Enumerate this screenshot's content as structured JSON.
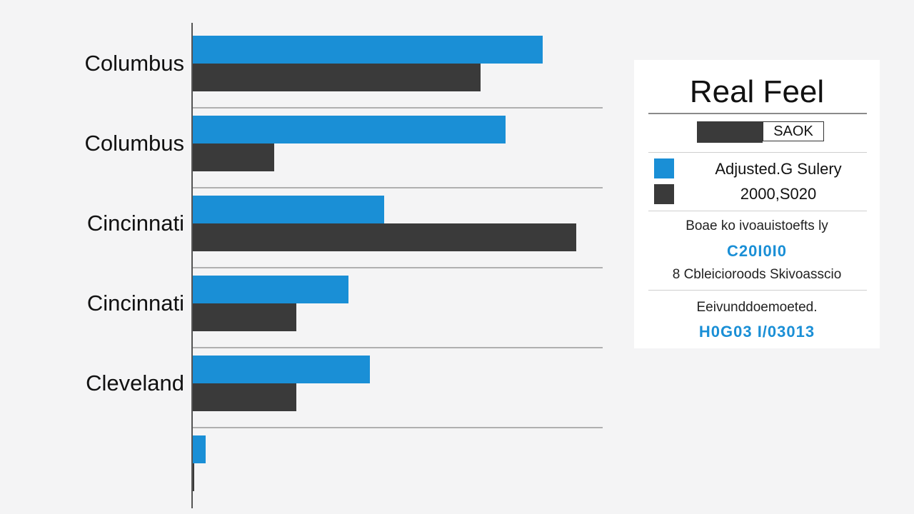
{
  "chart_data": {
    "type": "bar",
    "orientation": "horizontal",
    "categories": [
      "Columbus",
      "Columbus",
      "Cincinnati",
      "Cincinnati",
      "Cleveland",
      ""
    ],
    "series": [
      {
        "name": "Adjusted.G Sulery",
        "color": "#1a8fd6",
        "values": [
          490,
          438,
          268,
          218,
          248,
          18
        ]
      },
      {
        "name": "2000,S020",
        "color": "#3a3a3a",
        "values": [
          403,
          114,
          537,
          145,
          145,
          2
        ]
      }
    ],
    "xlim": [
      0,
      575
    ],
    "grid": false,
    "legend_position": "right"
  },
  "panel": {
    "title": "Real Feel",
    "badge_label": "SAOK",
    "note_1": "Boae ko ivoauistoefts ly",
    "value_1": "C20I0I0",
    "note_2": "8 Cbleicioroods Skivoasscio",
    "note_3": "Eeivunddoemoeted.",
    "value_2": "H0G03 I/03013"
  },
  "colors": {
    "accent": "#1a8fd6",
    "dark": "#3a3a3a",
    "background": "#f4f4f5",
    "panel": "#ffffff"
  }
}
